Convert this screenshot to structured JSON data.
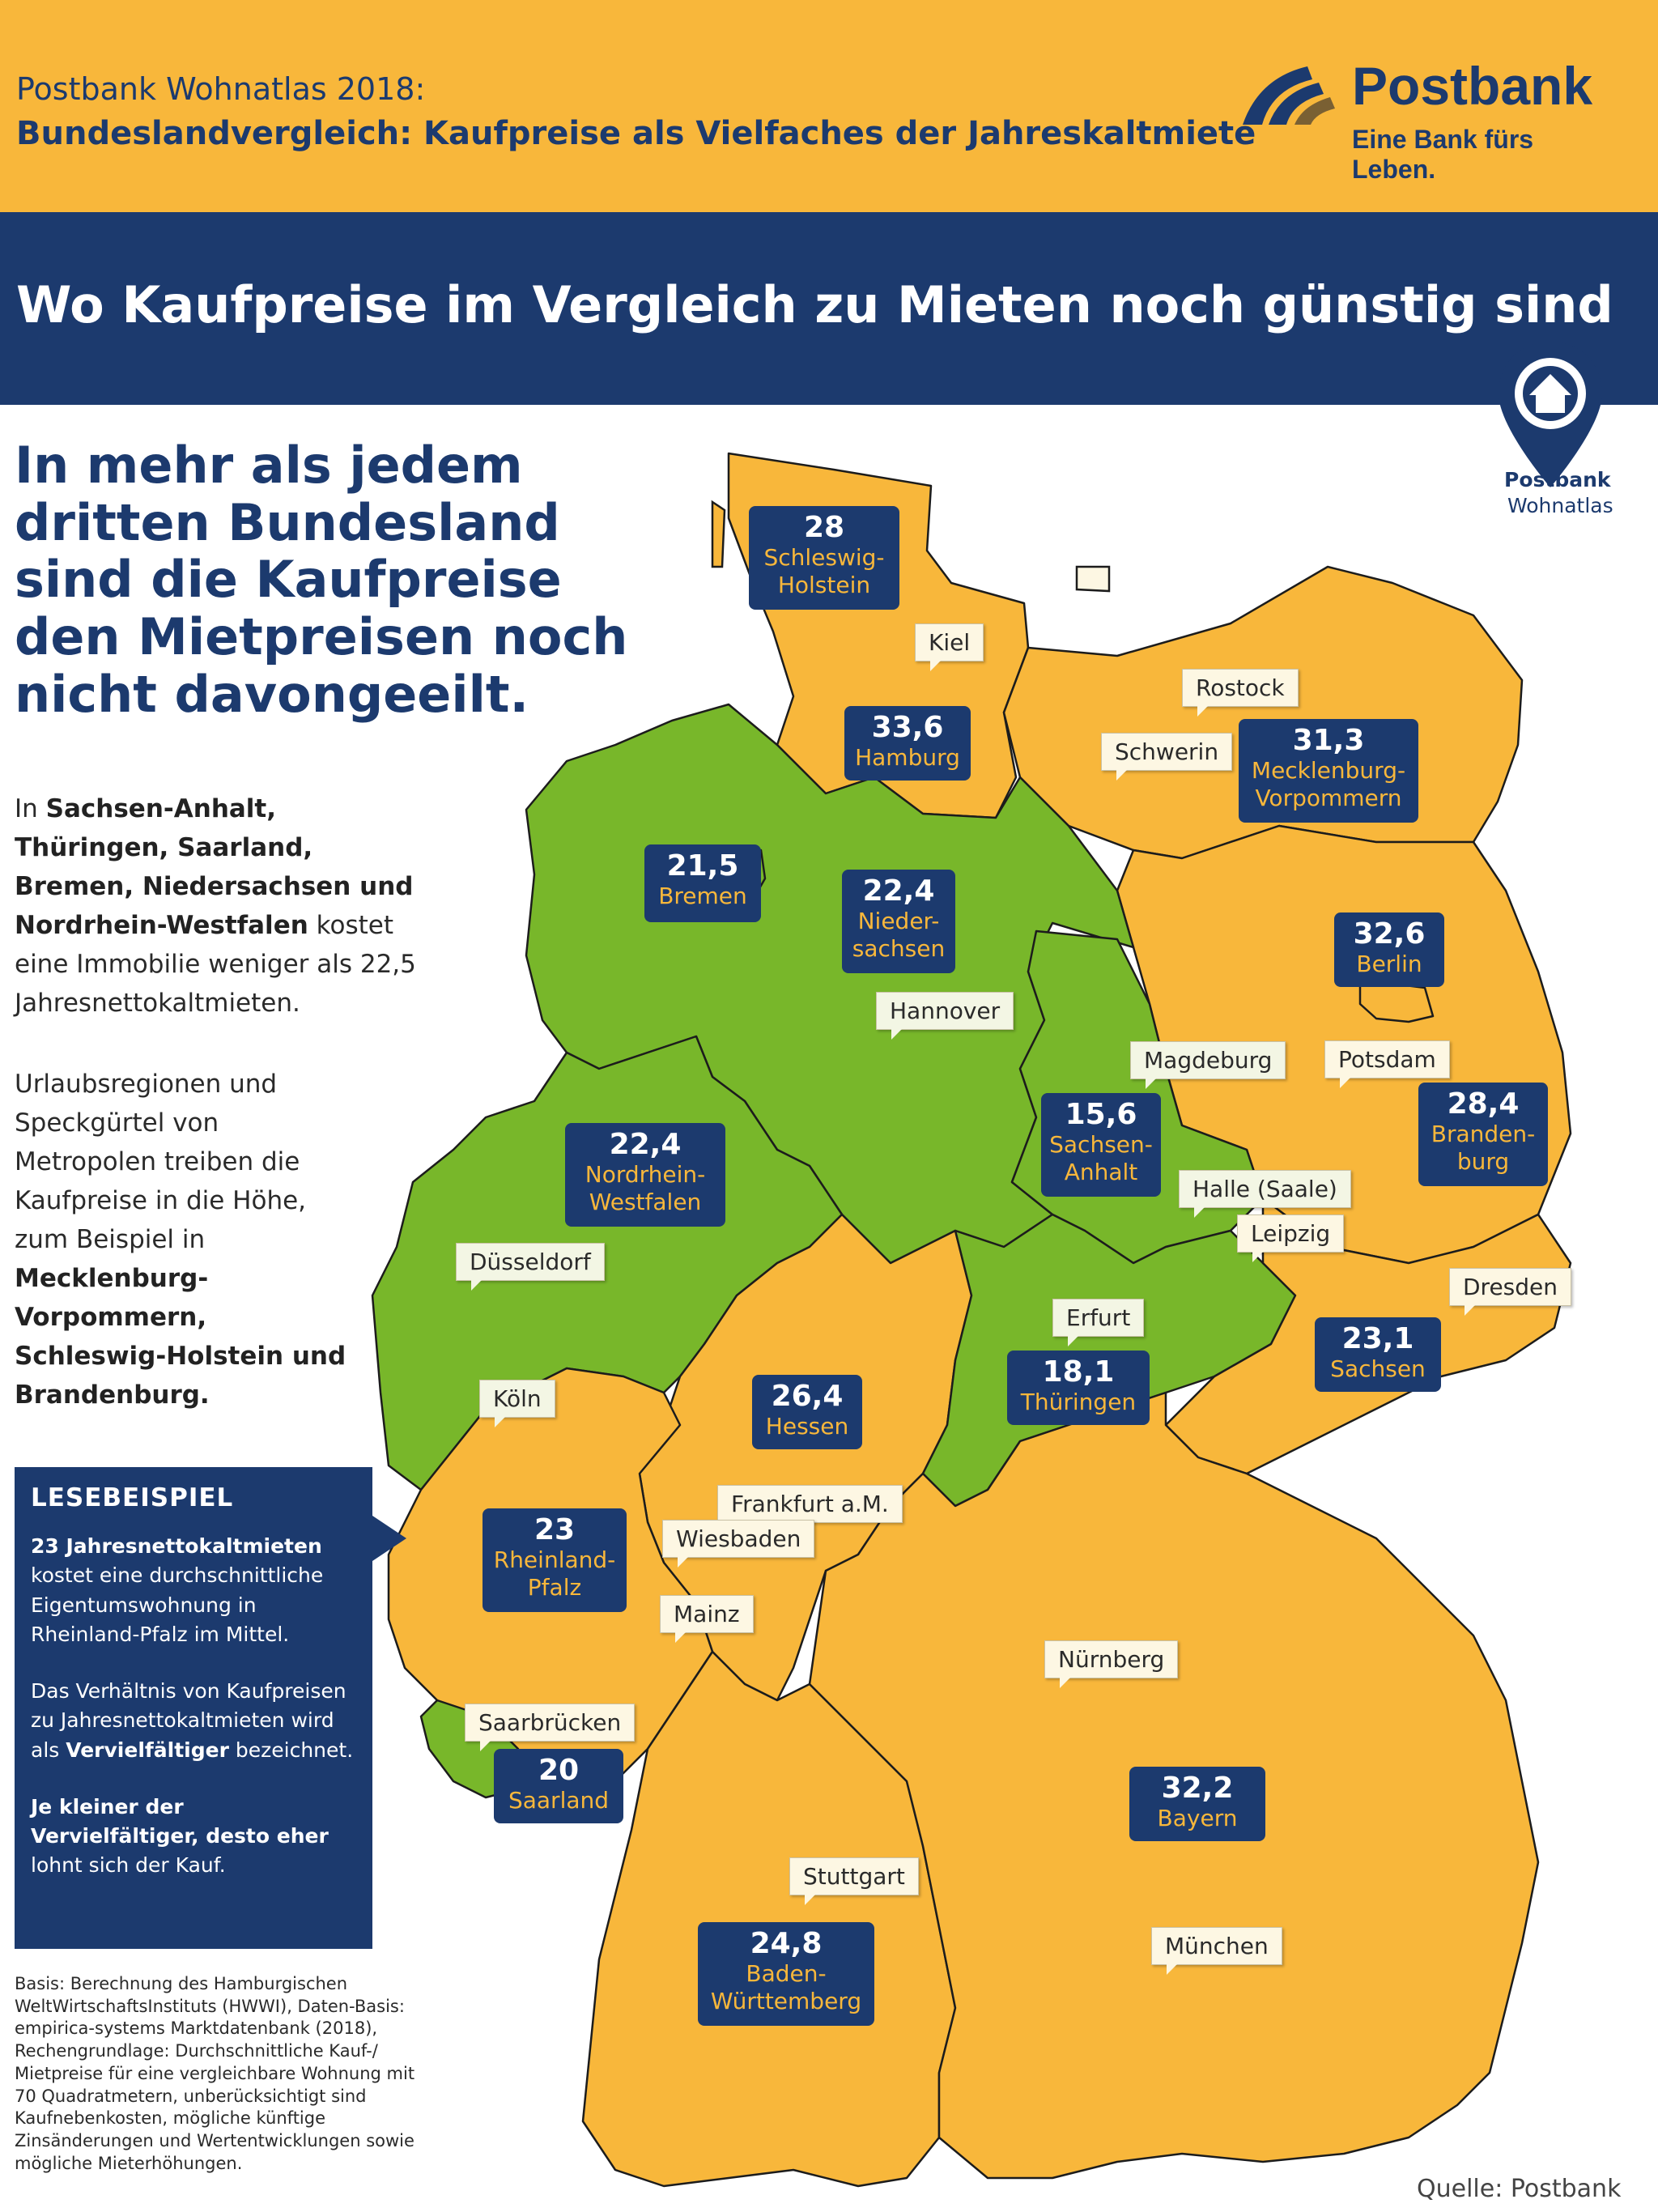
{
  "header": {
    "kicker": "Postbank Wohnatlas 2018:",
    "subtitle": "Bundeslandvergleich: Kaufpreise als Vielfaches der Jahreskaltmiete",
    "brand": "Postbank",
    "slogan": "Eine Bank fürs Leben."
  },
  "headline": "Wo Kaufpreise im Vergleich zu Mieten noch günstig sind",
  "wohnatlas_badge": {
    "title": "Postbank",
    "subtitle": "Wohnatlas"
  },
  "lead": "In mehr als jedem dritten Bundesland sind die Kaufpreise den Mietpreisen noch nicht davongeeilt.",
  "body1": {
    "pre": "In",
    "bold": "Sachsen-Anhalt, Thüringen, Saarland, Bremen, Niedersachsen und Nordrhein-Westfalen",
    "post": "kostet eine Immobilie weniger als 22,5 Jahresnettokaltmieten."
  },
  "body2": {
    "pre": "Urlaubsregionen und Speckgürtel von Metropolen treiben die Kaufpreise in die Höhe, zum Beispiel in",
    "bold": "Mecklenburg-Vorpommern, Schleswig-Holstein und Brandenburg."
  },
  "lesebeispiel": {
    "title": "LESEBEISPIEL",
    "p1_bold": "23 Jahresnettokaltmieten",
    "p1_text": "kostet eine durchschnittliche Eigentumswohnung in Rheinland-Pfalz im Mittel.",
    "p2_pre": "Das Verhältnis von Kaufpreisen zu Jahresnettokaltmieten wird als",
    "p2_bold": "Vervielfältiger",
    "p2_post": "bezeichnet.",
    "p3_bold": "Je kleiner der Vervielfältiger, desto eher",
    "p3_post": "lohnt sich der Kauf."
  },
  "basis": "Basis: Berechnung des Hamburgischen WeltWirtschaftsInstituts (HWWI), Daten-Basis: empirica-systems Marktdatenbank (2018), Rechengrundlage: Durchschnittliche Kauf-/ Mietpreise für eine vergleichbare Wohnung mit 70 Quadratmetern, unberücksichtigt sind Kaufnebenkosten, mögliche künftige Zinsänderungen und Wertentwicklungen sowie mögliche Mieterhöhungen.",
  "source": "Quelle: Postbank",
  "colors": {
    "navy": "#1c3a6e",
    "orange": "#f8b73b",
    "green": "#78b72a"
  },
  "states": [
    {
      "name": "Schleswig-\nHolstein",
      "value": "28",
      "fill": "orange"
    },
    {
      "name": "Hamburg",
      "value": "33,6",
      "fill": "orange"
    },
    {
      "name": "Mecklenburg-\nVorpommern",
      "value": "31,3",
      "fill": "orange"
    },
    {
      "name": "Bremen",
      "value": "21,5",
      "fill": "green"
    },
    {
      "name": "Nieder-\nsachsen",
      "value": "22,4",
      "fill": "green"
    },
    {
      "name": "Berlin",
      "value": "32,6",
      "fill": "orange"
    },
    {
      "name": "Sachsen-\nAnhalt",
      "value": "15,6",
      "fill": "green"
    },
    {
      "name": "Branden-\nburg",
      "value": "28,4",
      "fill": "orange"
    },
    {
      "name": "Nordrhein-\nWestfalen",
      "value": "22,4",
      "fill": "green"
    },
    {
      "name": "Sachsen",
      "value": "23,1",
      "fill": "orange"
    },
    {
      "name": "Thüringen",
      "value": "18,1",
      "fill": "green"
    },
    {
      "name": "Hessen",
      "value": "26,4",
      "fill": "orange"
    },
    {
      "name": "Rheinland-\nPfalz",
      "value": "23",
      "fill": "orange"
    },
    {
      "name": "Saarland",
      "value": "20",
      "fill": "green"
    },
    {
      "name": "Bayern",
      "value": "32,2",
      "fill": "orange"
    },
    {
      "name": "Baden-\nWürttemberg",
      "value": "24,8",
      "fill": "orange"
    }
  ],
  "cities": [
    "Kiel",
    "Rostock",
    "Schwerin",
    "Hannover",
    "Magdeburg",
    "Potsdam",
    "Halle (Saale)",
    "Leipzig",
    "Düsseldorf",
    "Dresden",
    "Erfurt",
    "Köln",
    "Frankfurt a.M.",
    "Wiesbaden",
    "Mainz",
    "Nürnberg",
    "Saarbrücken",
    "Stuttgart",
    "München"
  ]
}
